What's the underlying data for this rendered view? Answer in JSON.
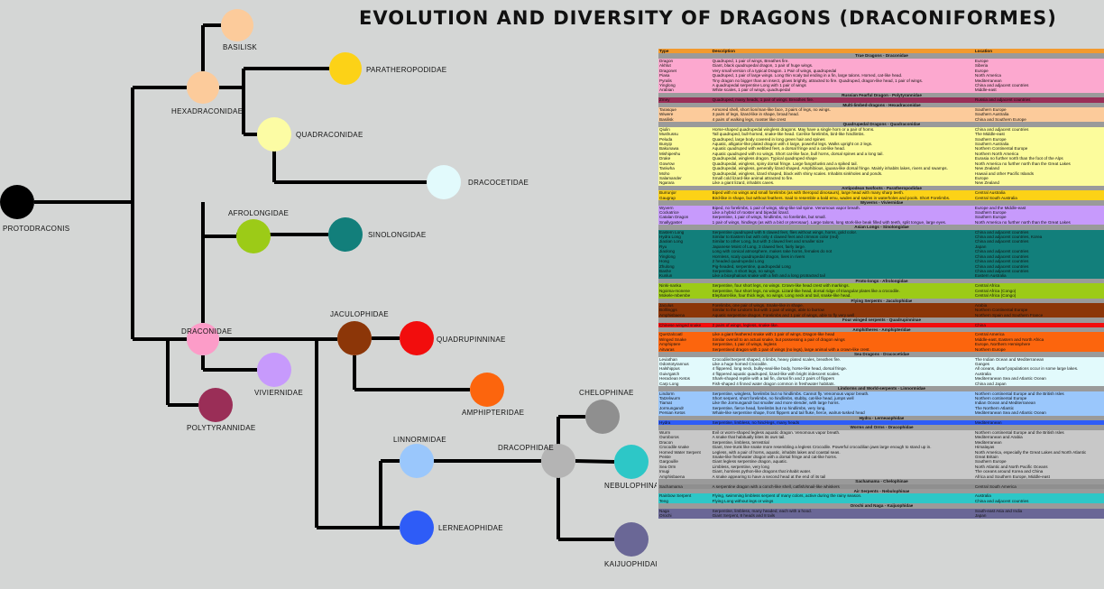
{
  "title": "EVOLUTION AND DIVERSITY OF DRAGONS (DRACONIFORMES)",
  "colors": {
    "line": "#000000",
    "background": "#d4d6d5",
    "header": "#f29a2e",
    "family_bar": "#9a9a9a"
  },
  "nodes": [
    {
      "id": "protodraconis",
      "label": "PROTODRACONIS",
      "color": "#000000"
    },
    {
      "id": "basilisk",
      "label": "BASILISK",
      "color": "#fccb9b"
    },
    {
      "id": "hexadraconidae",
      "label": "HEXADRACONIDAE",
      "color": "#fccb9b"
    },
    {
      "id": "paratheropodidae",
      "label": "PARATHEROPODIDAE",
      "color": "#fcd217"
    },
    {
      "id": "quadraconidae",
      "label": "QUADRACONIDAE",
      "color": "#fcfca4"
    },
    {
      "id": "dracocetidae",
      "label": "DRACOCETIDAE",
      "color": "#e2fafc"
    },
    {
      "id": "afrolongidae",
      "label": "AFROLONGIDAE",
      "color": "#9ccb17"
    },
    {
      "id": "sinolongidae",
      "label": "SINOLONGIDAE",
      "color": "#127f7b"
    },
    {
      "id": "draconidae",
      "label": "DRACONIDAE",
      "color": "#fc9cc8"
    },
    {
      "id": "jaculophidae",
      "label": "JACULOPHIDAE",
      "color": "#8c3608"
    },
    {
      "id": "quadrupinninae",
      "label": "QUADRUPINNINAE",
      "color": "#f20d0d"
    },
    {
      "id": "viviernidae",
      "label": "VIVIERNIDAE",
      "color": "#c79afc"
    },
    {
      "id": "polytyrannidae",
      "label": "POLYTYRANNIDAE",
      "color": "#9a2e57"
    },
    {
      "id": "amphipteridae",
      "label": "AMPHIPTERIDAE",
      "color": "#fc650d"
    },
    {
      "id": "linnormidae",
      "label": "LINNORMIDAE",
      "color": "#9ac7fc"
    },
    {
      "id": "dracophidae",
      "label": "DRACOPHIDAE",
      "color": "#b4b4b4"
    },
    {
      "id": "chelophinae",
      "label": "CHELOPHINAE",
      "color": "#8f8f8f"
    },
    {
      "id": "nebulophinae",
      "label": "NEBULOPHINAE",
      "color": "#2dc7c7"
    },
    {
      "id": "lerneaophidae",
      "label": "LERNEAOPHIDAE",
      "color": "#2e5cf7"
    },
    {
      "id": "kaijuophidae",
      "label": "KAIJUOPHIDAE",
      "color": "#6a6796"
    }
  ],
  "table": {
    "headers": [
      "Type",
      "Description",
      "Location"
    ],
    "groups": [
      {
        "name": "True Dragons - Draconidae",
        "color": "#fca8cf",
        "rows": [
          [
            "Dragon",
            "Quadruped, 1 pair of wings, Breathes fire.",
            "Europe"
          ],
          [
            "Akhlut",
            "Giant, black quadrupedal dragon, 1 pair of huge wings.",
            "Siberia"
          ],
          [
            "Dragonet",
            "Very small version of a typical Dragon. 1 Pair of wings, quadrupedal",
            "Europe"
          ],
          [
            "Piasa",
            "Quadruped, 1 pair of large wings. Long thin scaly tail ending in a fin, large talons. Horned, cat-like head.",
            "North America"
          ],
          [
            "Pyralis",
            "Tiny dragon no bigger than an insect, glows brightly, attracted to fire. Quadruped, dragon-like head, 1 pair of wings.",
            "Mediterranean"
          ],
          [
            "Yinglong",
            "A quadrupedal serpentine Long with 1 pair of wings",
            "China and adjacent countries"
          ],
          [
            "Arabian",
            "White scales, 1 pair of wings, quadrupedal",
            "Middle-east"
          ]
        ]
      },
      {
        "name": "Russian Fearful Dragon - Polytyrannidae",
        "color": "#9a2e57",
        "rows": [
          [
            "Zmey",
            "Quadruped, many heads, 1 pair of wings. Breathes fire.",
            "Russia and adjacent countries"
          ]
        ]
      },
      {
        "name": "Multi-limbed-dragons - Hexadraconidae",
        "color": "#fccb9b",
        "rows": [
          [
            "Tarasque",
            "Armored shell, short lion/man-like face, 3 pairs of legs, no wings.",
            "Southern Europe"
          ],
          [
            "Wiwere",
            "3 pairs of legs, lizard-like in shape, broad head.",
            "Southern Australia"
          ],
          [
            "Basilisk",
            "4 pairs of walking legs, rooster like crest",
            "China and Southern Europe"
          ]
        ]
      },
      {
        "name": "Quadrupedal Dragons - Quadraconidae",
        "color": "#fcfc9c",
        "rows": [
          [
            "Qiulin",
            "Horse-shaped quadrupedal wingless dragons. May have a single horn or a pair of horns.",
            "China and adjacent countries"
          ],
          [
            "Mushussu",
            "Tall quadruped, bull-horned, snake-like head. Cat-like forelimbs, bird-like hindlimbs.",
            "The Middle-east"
          ],
          [
            "Peluda",
            "Quadruped, large body covered in long green hair and spines",
            "Southern Europe"
          ],
          [
            "Bunyip",
            "Aquatic, alligator-like plated dragon with 4 large, powerful legs. Walks upright on 2 legs.",
            "Southern Australia"
          ],
          [
            "Bakunawa",
            "Aquatic quadruped with webbed feet, a dorsal fringe and a cat-like head.",
            "Northern Continental Europe"
          ],
          [
            "Mishipeshu",
            "Aquatic quadruped with no wings. Short cat-like face, bull horns, dorsal spines and a long tail.",
            "Northern North America"
          ],
          [
            "Drake",
            "Quadrupedal, wingless dragon. Typical quadruped shape",
            "Eurasia no further north than the foot of the Alps"
          ],
          [
            "Gowrow",
            "Quadrupedal, wingless, spiny dorsal fringe. Large fangs/tusks and a spiked tail.",
            "North America no further north than the Great Lakes"
          ],
          [
            "Taniwha",
            "Quadrupedal, wingless, generally lizard shaped. Amphibious, iguana-like dorsal fringe. Mainly inhabits lakes, rivers and swamps.",
            "New Zealand"
          ],
          [
            "Moho",
            "Quadrupedal, wingless, lizard shaped, black with shiny scales. Inhabits sinkholes and ponds.",
            "Hawaii and other Pacific Islands"
          ],
          [
            "Salamander",
            "Small cold lizard-like animal attracted to fire.",
            "Europe"
          ],
          [
            "Ngarara",
            "Like a giant lizard, inhabits caves.",
            "New Zealand"
          ]
        ]
      },
      {
        "name": "Antipodean twofoots - Paratheropodidae",
        "color": "#fcd217",
        "rows": [
          [
            "Burrunjor",
            "Biped with no wings and small forelimbs (as with theropod dinosaurs), large head with many sharp teeth.",
            "Central Australia"
          ],
          [
            "Gaugrap",
            "Bird-like in shape, but without feathers. Said to resemble a bald emu, wades and swims in waterholes and pools. Short Forelimbs.",
            "Central South Australia"
          ]
        ]
      },
      {
        "name": "Wyverns - Viviernidae",
        "color": "#c79afc",
        "rows": [
          [
            "Wyvern",
            "Biped, no forelimbs, 1 pair of wings, sting-like tail spine. Venomous vapor breath.",
            "Europe and the Middle-east"
          ],
          [
            "Cockatrice",
            "Like a hybrid of rooster and bipedal lizard.",
            "Southern Europe"
          ],
          [
            "Catalan Dragon",
            "Serpentine, 1 pair of wings, hindlimbs, no forelimbs, but small.",
            "Southern Europe"
          ],
          [
            "Snallygaster",
            "1 pair of wings, hindlegs (as with a bird or pterosaur). Large talons, long stork-like beak filled with teeth, split tongue, large eyes.",
            "North America no further north than the Great Lakes"
          ]
        ]
      },
      {
        "name": "Asian Longs - Sinolongidae",
        "color": "#127f7b",
        "rows": [
          [
            "Eastern Long",
            "Serpentine quadruped with 5 clawed feet, flies without wings, horns, gold color.",
            "China and adjacent countries"
          ],
          [
            "Hydra Long",
            "Similar to Eastern but with only 4 clawed feet and crimson color (red)",
            "China and adjacent countries, Korea"
          ],
          [
            "Jiaolan Long",
            "Similar to other Long, but with 3 clawed feet and smaller size",
            "China and adjacent countries"
          ],
          [
            "Ryu",
            "Japanese Moist of Long, 3 clawed feet, fairly large.",
            "Japan"
          ],
          [
            "Jiaolong",
            "Long with conical atmosphere, makes rake horns, females do not",
            "China and adjacent countries"
          ],
          [
            "Yinglong",
            "Hornless, scaly quadrupedal dragon, lives in rivers",
            "China and adjacent countries"
          ],
          [
            "Hong",
            "2 headed quadrupedal Long",
            "China and adjacent countries"
          ],
          [
            "Zhulong",
            "Pig-headed, serpentine, quadrupedal Long",
            "China and adjacent countries"
          ],
          [
            "Bashe",
            "Serpentine, 4 short legs, no wings",
            "China and adjacent countries"
          ],
          [
            "Kunlun",
            "Like a bicephalous snake with a fish and a long protracted tail",
            "Eastern Australia"
          ]
        ]
      },
      {
        "name": "Proto-longs - Afrolongidae",
        "color": "#9ccb17",
        "rows": [
          [
            "Ninki-nanka",
            "Serpentine, four short legs, no wings. Crown-like head crest with markings.",
            "Central Africa"
          ],
          [
            "Ngoima-monene",
            "Serpentine, four short legs, no wings. Lizard-like head, dorsal ridge of triangular plates like a crocodile.",
            "Central Africa (Congo)"
          ],
          [
            "Mokele-mbembe",
            "Elephant-like, four thick legs, no wings. Long neck and tail, snake-like head.",
            "Central Africa (Congo)"
          ]
        ]
      },
      {
        "name": "Flying Serpents - Jaculophidae",
        "color": "#8c3608",
        "rows": [
          [
            "Jaculus",
            "Forelimbs, one pair of wings. Snake-like in shape.",
            "Arabia"
          ],
          [
            "Bolllinggs",
            "Similar to the Lindorm but with 1 pair of wings, able to burrow",
            "Northern Continental Europe"
          ],
          [
            "Amphisbaena",
            "Aquatic serpentine dragon. Forelimbs and 1 pair of wings, able to fly very well",
            "Northern Spain and Southern France"
          ]
        ]
      },
      {
        "name": "Four winged serpents - Quadrupinninae",
        "color": "#f20d0d",
        "rows": [
          [
            "Chinese winged snake",
            "2 pairs of wings, legless, snake-like.",
            "China"
          ]
        ]
      },
      {
        "name": "Amphitheres - Amphipteridae",
        "color": "#fc650d",
        "rows": [
          [
            "Quetzalcoatl",
            "Like a giant feathered snake with 1 pair of wings. Dragon-like head",
            "Central America"
          ],
          [
            "Winged Snake",
            "Similar overall to an actual snake, but possessing a pair of dragon wings",
            "Middle-east, Eastern and North Africa"
          ],
          [
            "Amphiptere",
            "Serpentine, 1 pair of wings, legless",
            "Europe, Northern Hemisphere"
          ],
          [
            "Aitvaras",
            "Serpentined dragon with 1 pair of wings (no legs), large animal with a crown-like crest.",
            "Northern Europe"
          ]
        ]
      },
      {
        "name": "Sea Dragons - Dracocetidae",
        "color": "#e2fafc",
        "rows": [
          [
            "Leviathan",
            "Crocodile/Serpent shaped, 4 limbs, heavy plated scales, breathes fire.",
            "The Indian Ocean and Mediterranean"
          ],
          [
            "Odontotyrannus",
            "Like a huge horned Crocodile.",
            "Ganges"
          ],
          [
            "Halshippus",
            "4 flippered, long neck, bulky-seal-like body, horse-like head, dorsal fringe.",
            "All oceans, dwarf populations occur in some large lakes."
          ],
          [
            "Guivrgatch",
            "4 flippered aquatic quadruped, lizard-like with bright iridescent scales.",
            "Australia"
          ],
          [
            "Heraclean Ketos",
            "Shark-shaped reptile with a tail fin, dorsal fin and 2 pairs of flippers",
            "Mediterranean Sea and Atlantic Ocean"
          ],
          [
            "Carp Long",
            "Fish-shaped 4 finned water dragon common in freshwater habitats.",
            "China and Japan"
          ]
        ]
      },
      {
        "name": "Lindorms and World-serpents - Linnormidae",
        "color": "#9ac7fc",
        "rows": [
          [
            "Lindorm",
            "Serpentine, wingless, forelimbs but no hindlimbs. Cannot fly. Venomous vapor breath.",
            "Northern continental Europe and the British Isles"
          ],
          [
            "Tatzelwurm",
            "Short serpent, short forelimbs, no hindlimbs, stubby, cat-like head, jumps well",
            "Northern continental Europe"
          ],
          [
            "Tiamat",
            "Like the Jormungandr but smaller and more slender, with large horns.",
            "Indian Ocean and Mediterranean"
          ],
          [
            "Jormungandr",
            "Serpentine, fierce head, forelimbs but no hindlimbs, very long.",
            "The Northern Atlantic"
          ],
          [
            "Persian Ketos",
            "Whale-like serpentine shape, front flippers and tail fluke, fierce, walrus-tusked head",
            "Mediterranean Sea and Atlantic Ocean"
          ]
        ]
      },
      {
        "name": "Hydra - Lerneaophidae",
        "color": "#2e5cf7",
        "rows": [
          [
            "Hydra",
            "Serpentine, limbless, no hind-legs, many heads",
            "Mediterranean"
          ]
        ]
      },
      {
        "name": "Worms and Orms - Dracophidae",
        "color": "#c8c8c8",
        "rows": [
          [
            "Wurm",
            "Evil or worm-shaped legless aquatic dragon. Venomous vapor breath.",
            "Northern continental Europe and the British Isles"
          ],
          [
            "Ouroboros",
            "A snake that habitually bites its own tail.",
            "Mediterranean and Arabia"
          ],
          [
            "Dracon",
            "Serpentine, limbless, terrestrial",
            "Mediterranean"
          ],
          [
            "Crocodile snake",
            "Giant, tree-trunk like snake more resembling a legless Crocodile. Powerful crocodilian jaws large enough to stand up in.",
            "Himalayas"
          ],
          [
            "Horned Water Serpent",
            "Legless, with a pair of horns, aquatic, inhabits lakes and coastal seas.",
            "North America, especially the Great Lakes and North Atlantic"
          ],
          [
            "Peiste",
            "Snake-like freshwater dragon with a dorsal fringe and cat-like horns.",
            "Great Britain"
          ],
          [
            "Gargouille",
            "Giant legless serpentine dragon, aquatic.",
            "Southern Europe"
          ],
          [
            "Sea Orm",
            "Limbless, serpentine, very long",
            "North Atlantic and North Pacific Oceans"
          ],
          [
            "Imugi",
            "Giant, hornless python-like dragons that inhabit water.",
            "The oceans around Korea and China"
          ],
          [
            "Amphisbaena",
            "A snake appearing to have a second head at the end of its tail",
            "Africa and Southern Europe, Middle-east"
          ]
        ]
      },
      {
        "name": "Sachamama - Chelophinae",
        "color": "#8f8f8f",
        "rows": [
          [
            "Sachamama",
            "A serpentine dragon with a conch-like shell, catfish/snail-like whiskers",
            "Central South America"
          ]
        ]
      },
      {
        "name": "Air Serpents - Nebulophinae",
        "color": "#2dc7c7",
        "rows": [
          [
            "Rainbow Serpent",
            "Flying, swimming limbless serpent of many colors, active during the rainy season.",
            "Australia"
          ],
          [
            "Teng",
            "Flying Long without legs or wings",
            "China and adjacent countries"
          ]
        ]
      },
      {
        "name": "Orochi and Naga - Kaijuophidae",
        "color": "#6a6796",
        "rows": [
          [
            "Naga",
            "Serpentine, limbless, many headed, each with a hood.",
            "South-east Asia and India"
          ],
          [
            "Orochi",
            "Giant Serpent, 8 heads and 8 tails",
            "Japan"
          ]
        ]
      }
    ]
  }
}
